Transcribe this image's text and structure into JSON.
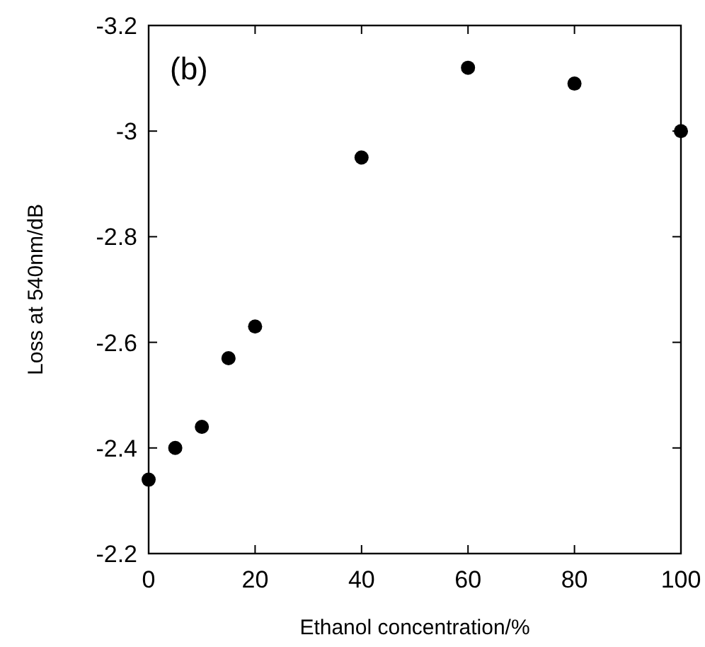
{
  "chart_data": {
    "type": "scatter",
    "xlabel": "Ethanol concentration/%",
    "ylabel": "Loss at 540nm/dB",
    "annotations": [
      "(b)"
    ],
    "x": [
      0,
      5,
      10,
      15,
      20,
      40,
      60,
      80,
      100
    ],
    "series": [
      {
        "color": "#000000",
        "values": [
          -2.34,
          -2.4,
          -2.44,
          -2.57,
          -2.63,
          -2.95,
          -3.12,
          -3.09,
          -3.0
        ]
      }
    ],
    "xlim": [
      0,
      100
    ],
    "xticks": [
      0,
      20,
      40,
      60,
      80,
      100
    ],
    "ylim": [
      -2.2,
      -3.2
    ],
    "yticks": [
      -2.2,
      -2.4,
      -2.6,
      -2.8,
      -3,
      -3.2
    ],
    "marker": "circle",
    "grid": false
  }
}
